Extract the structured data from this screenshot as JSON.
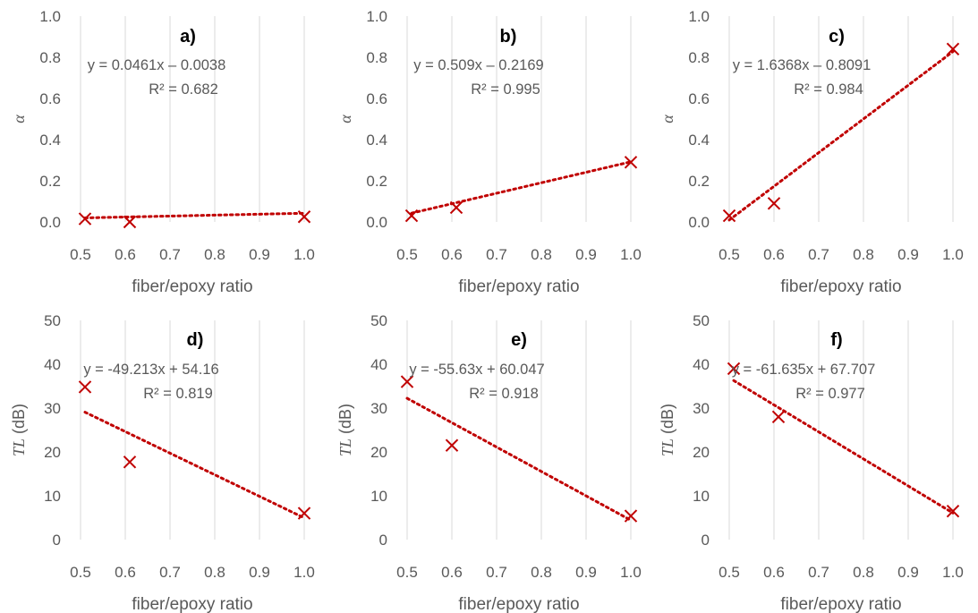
{
  "chart_data": [
    {
      "type": "scatter",
      "panel_label": "a)",
      "xlabel": "fiber/epoxy ratio",
      "ylabel": "α",
      "ylabel_unit": "",
      "xlim": [
        0.5,
        1.0
      ],
      "ylim": [
        0.0,
        1.0
      ],
      "xticks": [
        "0.5",
        "0.6",
        "0.7",
        "0.8",
        "0.9",
        "1.0"
      ],
      "yticks": [
        "0.0",
        "0.2",
        "0.4",
        "0.6",
        "0.8",
        "1.0"
      ],
      "grid": "vertical",
      "series": [
        {
          "x": [
            0.51,
            0.61,
            1.0
          ],
          "y": [
            0.015,
            0.0,
            0.025
          ]
        }
      ],
      "trendline": {
        "slope": 0.0461,
        "intercept": -0.0038
      },
      "equation": "y = 0.0461x – 0.0038",
      "r2": "R² = 0.682"
    },
    {
      "type": "scatter",
      "panel_label": "b)",
      "xlabel": "fiber/epoxy ratio",
      "ylabel": "α",
      "ylabel_unit": "",
      "xlim": [
        0.5,
        1.0
      ],
      "ylim": [
        0.0,
        1.0
      ],
      "xticks": [
        "0.5",
        "0.6",
        "0.7",
        "0.8",
        "0.9",
        "1.0"
      ],
      "yticks": [
        "0.0",
        "0.2",
        "0.4",
        "0.6",
        "0.8",
        "1.0"
      ],
      "grid": "vertical",
      "series": [
        {
          "x": [
            0.51,
            0.61,
            1.0
          ],
          "y": [
            0.03,
            0.07,
            0.29
          ]
        }
      ],
      "trendline": {
        "slope": 0.509,
        "intercept": -0.2169
      },
      "equation": "y = 0.509x – 0.2169",
      "r2": "R² = 0.995"
    },
    {
      "type": "scatter",
      "panel_label": "c)",
      "xlabel": "fiber/epoxy ratio",
      "ylabel": "α",
      "ylabel_unit": "",
      "xlim": [
        0.5,
        1.0
      ],
      "ylim": [
        0.0,
        1.0
      ],
      "xticks": [
        "0.5",
        "0.6",
        "0.7",
        "0.8",
        "0.9",
        "1.0"
      ],
      "yticks": [
        "0.0",
        "0.2",
        "0.4",
        "0.6",
        "0.8",
        "1.0"
      ],
      "grid": "vertical",
      "series": [
        {
          "x": [
            0.5,
            0.6,
            1.0
          ],
          "y": [
            0.03,
            0.09,
            0.84
          ]
        }
      ],
      "trendline": {
        "slope": 1.6368,
        "intercept": -0.8091
      },
      "equation": "y = 1.6368x – 0.8091",
      "r2": "R² = 0.984"
    },
    {
      "type": "scatter",
      "panel_label": "d)",
      "xlabel": "fiber/epoxy ratio",
      "ylabel": "TL",
      "ylabel_unit": " (dB)",
      "xlim": [
        0.5,
        1.0
      ],
      "ylim": [
        0,
        50
      ],
      "xticks": [
        "0.5",
        "0.6",
        "0.7",
        "0.8",
        "0.9",
        "1.0"
      ],
      "yticks": [
        "0",
        "10",
        "20",
        "30",
        "40",
        "50"
      ],
      "grid": "vertical",
      "series": [
        {
          "x": [
            0.51,
            0.61,
            1.0
          ],
          "y": [
            34.8,
            17.7,
            6.0
          ]
        }
      ],
      "trendline": {
        "slope": -49.213,
        "intercept": 54.16
      },
      "equation": "y = -49.213x + 54.16",
      "r2": "R² = 0.819"
    },
    {
      "type": "scatter",
      "panel_label": "e)",
      "xlabel": "fiber/epoxy ratio",
      "ylabel": "TL",
      "ylabel_unit": " (dB)",
      "xlim": [
        0.5,
        1.0
      ],
      "ylim": [
        0,
        50
      ],
      "xticks": [
        "0.5",
        "0.6",
        "0.7",
        "0.8",
        "0.9",
        "1.0"
      ],
      "yticks": [
        "0",
        "10",
        "20",
        "30",
        "40",
        "50"
      ],
      "grid": "vertical",
      "series": [
        {
          "x": [
            0.5,
            0.6,
            1.0
          ],
          "y": [
            36.0,
            21.5,
            5.4
          ]
        }
      ],
      "trendline": {
        "slope": -55.63,
        "intercept": 60.047
      },
      "equation": "y = -55.63x + 60.047",
      "r2": "R² = 0.918"
    },
    {
      "type": "scatter",
      "panel_label": "f)",
      "xlabel": "fiber/epoxy ratio",
      "ylabel": "TL",
      "ylabel_unit": " (dB)",
      "xlim": [
        0.5,
        1.0
      ],
      "ylim": [
        0,
        50
      ],
      "xticks": [
        "0.5",
        "0.6",
        "0.7",
        "0.8",
        "0.9",
        "1.0"
      ],
      "yticks": [
        "0",
        "10",
        "20",
        "30",
        "40",
        "50"
      ],
      "grid": "vertical",
      "series": [
        {
          "x": [
            0.51,
            0.61,
            1.0
          ],
          "y": [
            39.0,
            28.0,
            6.5
          ]
        }
      ],
      "trendline": {
        "slope": -61.635,
        "intercept": 67.707
      },
      "equation": "y = -61.635x + 67.707",
      "r2": "R² = 0.977"
    }
  ],
  "colors": {
    "marker": "#c00000",
    "trendline": "#c00000",
    "grid": "#d9d9d9",
    "text": "#595959"
  }
}
